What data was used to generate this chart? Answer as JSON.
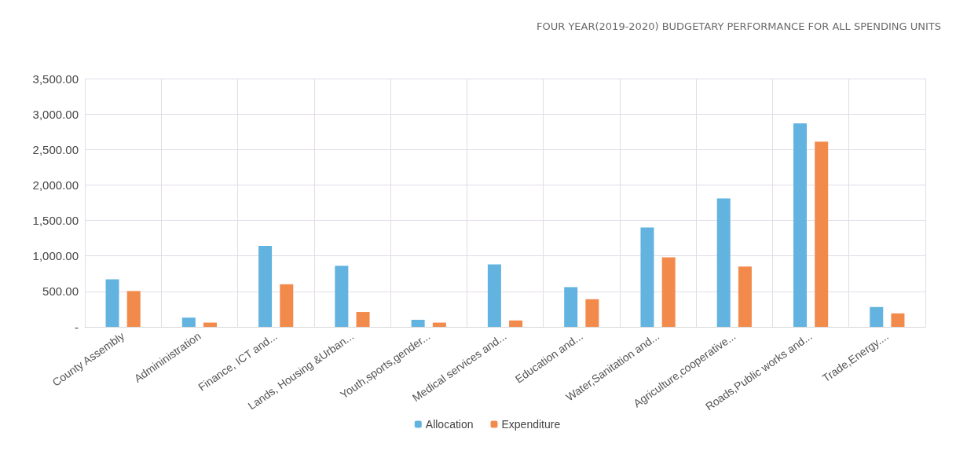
{
  "chart_data": {
    "type": "bar",
    "title": "FOUR YEAR(2019-2020) BUDGETARY PERFORMANCE FOR ALL SPENDING UNITS",
    "categories": [
      "County Assembly",
      "Admininistration",
      "Finance, ICT and...",
      "Lands, Housing &Urban...",
      "Youth,sports,gender...",
      "Medical services and...",
      "Education and...",
      "Water,Sanitation and...",
      "Agriculture,cooperative...",
      "Roads,Public works and...",
      "Trade,Energy...."
    ],
    "series": [
      {
        "name": "Allocation",
        "color": "#62b3e0",
        "values": [
          670,
          130,
          1140,
          860,
          100,
          880,
          560,
          1400,
          1810,
          2870,
          280
        ]
      },
      {
        "name": "Expenditure",
        "color": "#f28a4c",
        "values": [
          505,
          60,
          600,
          210,
          60,
          90,
          390,
          980,
          850,
          2610,
          190
        ]
      }
    ],
    "ylim": [
      0,
      3500
    ],
    "yticks": [
      {
        "value": 0,
        "label": "-"
      },
      {
        "value": 500,
        "label": "500.00"
      },
      {
        "value": 1000,
        "label": "1,000.00"
      },
      {
        "value": 1500,
        "label": "1,500.00"
      },
      {
        "value": 2000,
        "label": "2,000.00"
      },
      {
        "value": 2500,
        "label": "2,500.00"
      },
      {
        "value": 3000,
        "label": "3,000.00"
      },
      {
        "value": 3500,
        "label": "3,500.00"
      }
    ],
    "grid": true,
    "legend": "bottom"
  }
}
